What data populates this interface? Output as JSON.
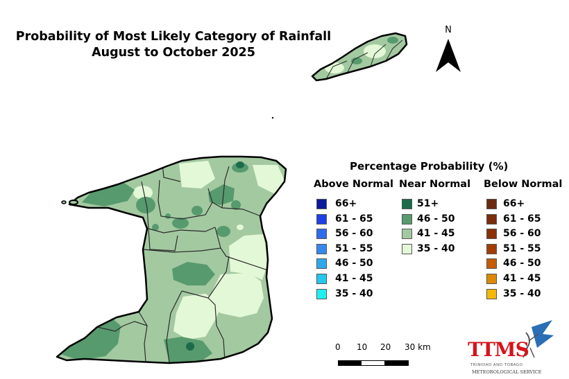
{
  "title": {
    "line1": "Probability of Most Likely Category of Rainfall",
    "line2": "August to October 2025"
  },
  "north_arrow": {
    "label": "N"
  },
  "legend": {
    "title": "Percentage Probability (%)",
    "above": {
      "heading": "Above Normal",
      "items": [
        {
          "label": "66+",
          "color": "#0a1a9a"
        },
        {
          "label": "61 - 65",
          "color": "#1f3fe6"
        },
        {
          "label": "56 - 60",
          "color": "#2f6bec"
        },
        {
          "label": "51 - 55",
          "color": "#3589ec"
        },
        {
          "label": "46 - 50",
          "color": "#2fa8ea"
        },
        {
          "label": "41 - 45",
          "color": "#24c8ec"
        },
        {
          "label": "35 - 40",
          "color": "#1ef0f0"
        }
      ]
    },
    "near": {
      "heading": "Near Normal",
      "items": [
        {
          "label": "51+",
          "color": "#1d6b4a"
        },
        {
          "label": "46 - 50",
          "color": "#579a6e"
        },
        {
          "label": "41 - 45",
          "color": "#a3c9a1"
        },
        {
          "label": "35 - 40",
          "color": "#e3f8d6"
        }
      ]
    },
    "below": {
      "heading": "Below Normal",
      "items": [
        {
          "label": "66+",
          "color": "#6b2a10"
        },
        {
          "label": "61 - 65",
          "color": "#7a2c0c"
        },
        {
          "label": "56 - 60",
          "color": "#8a3004"
        },
        {
          "label": "51 - 55",
          "color": "#a33c00"
        },
        {
          "label": "46 - 50",
          "color": "#c45c00"
        },
        {
          "label": "41 - 45",
          "color": "#de8800"
        },
        {
          "label": "35 - 40",
          "color": "#f5b800"
        }
      ]
    }
  },
  "scale_bar": {
    "ticks": [
      "0",
      "10",
      "20",
      "30 km"
    ]
  },
  "logo": {
    "text": "TTMS",
    "subtitle": "TRINIDAD AND TOBAGO",
    "subtitle2": "METEOROLOGICAL SERVICE"
  }
}
